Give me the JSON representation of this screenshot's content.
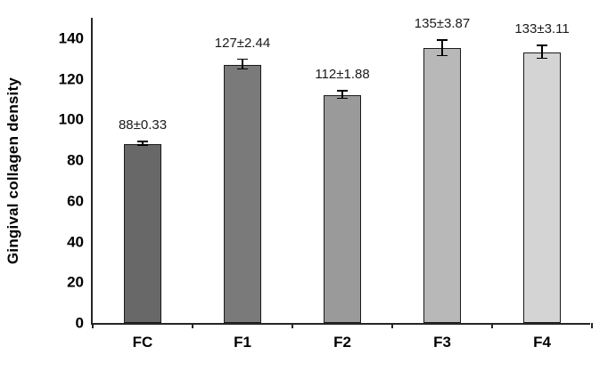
{
  "chart_data": {
    "type": "bar",
    "title": "",
    "xlabel": "",
    "ylabel": "Gingival collagen density",
    "categories": [
      "FC",
      "F1",
      "F2",
      "F3",
      "F4"
    ],
    "values": [
      88,
      127,
      112,
      135,
      133
    ],
    "errors": [
      0.33,
      2.44,
      1.88,
      3.87,
      3.11
    ],
    "data_labels": [
      "88±0.33",
      "127±2.44",
      "112±1.88",
      "135±3.87",
      "133±3.11"
    ],
    "bar_colors": [
      "#686868",
      "#7a7a7a",
      "#9a9a9a",
      "#b8b8b8",
      "#d4d4d4"
    ],
    "bar_border_color": "#1a1a1a",
    "axis_color": "#262626",
    "ylim": [
      0,
      140
    ],
    "yticks": [
      0,
      20,
      40,
      60,
      80,
      100,
      120,
      140
    ],
    "grid": false,
    "legend": false,
    "background": "#ffffff"
  }
}
